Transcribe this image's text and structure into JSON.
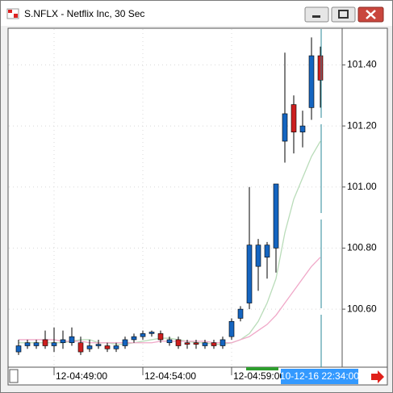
{
  "chart_data": {
    "type": "candlestick",
    "title": "S.NFLX - Netflix Inc, 30 Sec",
    "categories": [
      null,
      null,
      null,
      null,
      "12-04:49:00",
      null,
      null,
      null,
      null,
      null,
      null,
      null,
      null,
      null,
      "12-04:54:00",
      null,
      null,
      null,
      null,
      null,
      null,
      null,
      null,
      null,
      "12-04:59:00",
      null,
      null,
      null,
      null,
      null,
      null,
      null,
      null,
      null,
      null
    ],
    "open": [
      100.46,
      100.48,
      100.48,
      100.5,
      100.48,
      100.49,
      100.49,
      100.49,
      100.47,
      100.48,
      100.48,
      100.47,
      100.48,
      100.5,
      100.51,
      100.52,
      100.52,
      100.49,
      100.5,
      100.49,
      100.49,
      100.48,
      100.49,
      100.48,
      100.51,
      100.57,
      100.62,
      100.74,
      100.77,
      100.8,
      101.15,
      101.27,
      101.18,
      101.26,
      101.43
    ],
    "high": [
      100.5,
      100.5,
      100.5,
      100.53,
      100.54,
      100.53,
      100.54,
      100.51,
      100.5,
      100.5,
      100.49,
      100.49,
      100.51,
      100.52,
      100.53,
      100.53,
      100.53,
      100.51,
      100.51,
      100.5,
      100.5,
      100.5,
      100.5,
      100.51,
      100.57,
      100.61,
      101.0,
      100.83,
      100.82,
      101.01,
      101.44,
      101.3,
      101.25,
      101.49,
      101.46
    ],
    "low": [
      100.45,
      100.47,
      100.47,
      100.47,
      100.46,
      100.47,
      100.48,
      100.45,
      100.46,
      100.47,
      100.46,
      100.46,
      100.47,
      100.49,
      100.5,
      100.51,
      100.49,
      100.48,
      100.47,
      100.47,
      100.47,
      100.47,
      100.47,
      100.47,
      100.5,
      100.56,
      100.6,
      100.66,
      100.7,
      100.72,
      101.08,
      101.11,
      101.13,
      101.22,
      101.26
    ],
    "close": [
      100.48,
      100.49,
      100.49,
      100.48,
      100.49,
      100.5,
      100.51,
      100.46,
      100.48,
      100.485,
      100.47,
      100.48,
      100.5,
      100.51,
      100.52,
      100.525,
      100.5,
      100.5,
      100.48,
      100.485,
      100.485,
      100.49,
      100.48,
      100.5,
      100.56,
      100.6,
      100.81,
      100.81,
      100.81,
      101.01,
      101.24,
      101.18,
      101.2,
      101.43,
      101.35
    ],
    "up_color": "#1565c0",
    "down_color": "#cc1f1f",
    "series": [
      {
        "color": "#b9dcb9",
        "values": [
          100.49,
          100.49,
          100.49,
          100.49,
          100.49,
          100.49,
          100.495,
          100.5,
          100.5,
          100.49,
          100.49,
          100.485,
          100.485,
          100.49,
          100.495,
          100.5,
          100.505,
          100.505,
          100.5,
          100.495,
          100.49,
          100.49,
          100.485,
          100.485,
          100.49,
          100.5,
          100.52,
          100.56,
          100.62,
          100.7,
          100.85,
          100.96,
          101.03,
          101.1,
          101.15
        ]
      },
      {
        "color": "#f0a8c8",
        "values": [
          100.5,
          100.5,
          100.5,
          100.5,
          100.5,
          100.495,
          100.495,
          100.495,
          100.49,
          100.49,
          100.49,
          100.49,
          100.49,
          100.49,
          100.49,
          100.49,
          100.495,
          100.495,
          100.495,
          100.495,
          100.495,
          100.495,
          100.49,
          100.49,
          100.49,
          100.5,
          100.51,
          100.53,
          100.55,
          100.58,
          100.62,
          100.66,
          100.7,
          100.74,
          100.77
        ]
      }
    ],
    "ylim": [
      100.41,
      101.52
    ],
    "yticks": [
      {
        "value": 100.6,
        "label": "100.60"
      },
      {
        "value": 100.8,
        "label": "100.80"
      },
      {
        "value": 101.0,
        "label": "101.00"
      },
      {
        "value": 101.2,
        "label": "101.20"
      },
      {
        "value": 101.4,
        "label": "101.40"
      }
    ],
    "grid": true,
    "annotations": {
      "cursor_label": "10-12-16 22:34:00"
    }
  }
}
